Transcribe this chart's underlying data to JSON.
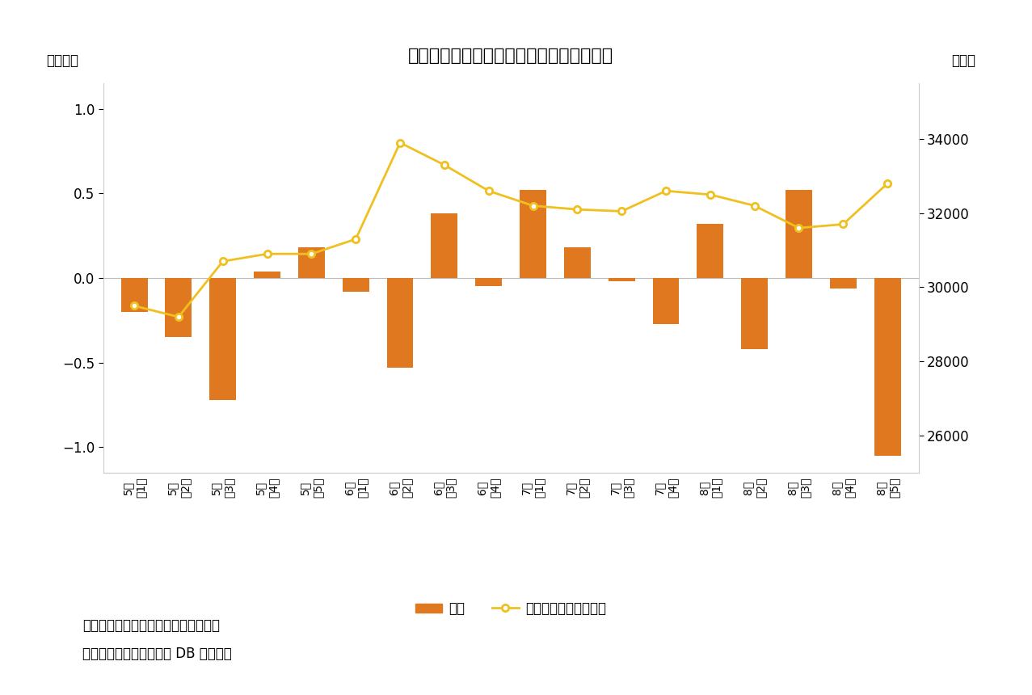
{
  "title": "図表４　個人は８月第５週に大幅売り越し",
  "categories": [
    "5月\n第1週",
    "5月\n第2週",
    "5月\n第3週",
    "5月\n第4週",
    "5月\n第5週",
    "6月\n第1週",
    "6月\n第2週",
    "6月\n第3週",
    "6月\n第4週",
    "7月\n第1週",
    "7月\n第2週",
    "7月\n第3週",
    "7月\n第4週",
    "8月\n第1週",
    "8月\n第2週",
    "8月\n第3週",
    "8月\n第4週",
    "8月\n第5週"
  ],
  "bar_values": [
    -0.2,
    -0.35,
    -0.72,
    0.04,
    0.18,
    -0.08,
    -0.53,
    0.38,
    -0.05,
    0.52,
    0.18,
    -0.02,
    -0.27,
    0.32,
    -0.42,
    0.52,
    -0.06,
    -1.05
  ],
  "line_values": [
    29500,
    29200,
    30700,
    30900,
    30900,
    31300,
    33900,
    33300,
    32600,
    32200,
    32100,
    32050,
    32600,
    32500,
    32200,
    31600,
    31700,
    32800
  ],
  "bar_color": "#E07820",
  "line_color": "#F0C020",
  "background_color": "#FFFFFF",
  "left_ylabel": "〈兆円〉",
  "right_ylabel": "〈円〉",
  "left_ylim": [
    -1.15,
    1.15
  ],
  "right_ylim": [
    25000,
    35500
  ],
  "left_yticks": [
    -1.0,
    -0.5,
    0.0,
    0.5,
    1.0
  ],
  "right_yticks": [
    26000,
    28000,
    30000,
    32000,
    34000
  ],
  "legend_bar_label": "個人",
  "legend_line_label": "日経平均株価（右軸）",
  "note1": "（注）個人の現物と先物の合計、週次",
  "note2": "（資料）ニッセイ基礎研 DB から作成"
}
